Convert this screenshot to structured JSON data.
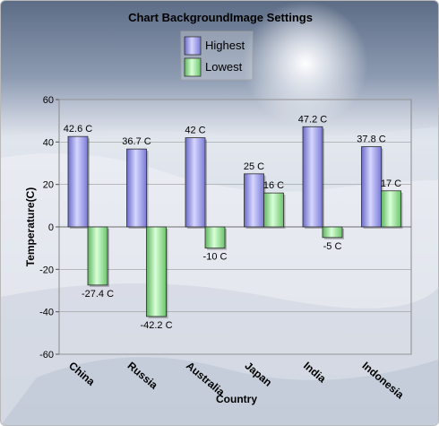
{
  "chart_data": {
    "type": "bar",
    "title": "Chart BackgroundImage Settings",
    "xlabel": "Country",
    "ylabel": "Temperature(C)",
    "ylim": [
      -60,
      60
    ],
    "yticks": [
      "60",
      "40",
      "20",
      "0",
      "-20",
      "-40",
      "-60"
    ],
    "categories": [
      "China",
      "Russia",
      "Australia",
      "Japan",
      "India",
      "Indonesia"
    ],
    "series": [
      {
        "name": "Highest",
        "values": [
          42.6,
          36.7,
          42,
          25,
          47.2,
          37.8
        ],
        "labels": [
          "42.6 C",
          "36.7 C",
          "42 C",
          "25 C",
          "47.2 C",
          "37.8 C"
        ],
        "color": "#9c9ce8"
      },
      {
        "name": "Lowest",
        "values": [
          -27.4,
          -42.2,
          -10,
          16,
          -5,
          17
        ],
        "labels": [
          "-27.4 C",
          "-42.2 C",
          "-10 C",
          "16 C",
          "-5 C",
          "17 C"
        ],
        "color": "#9ee89e"
      }
    ],
    "grid": true,
    "legend": "top-center",
    "background": "snow-landscape-image"
  }
}
